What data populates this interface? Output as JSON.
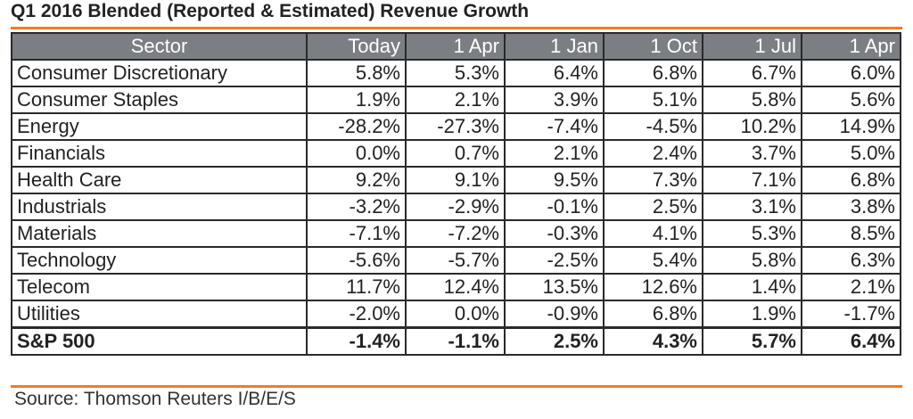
{
  "title": "Q1 2016 Blended (Reported & Estimated) Revenue Growth",
  "source": "Source: Thomson Reuters I/B/E/S",
  "colors": {
    "accent_rule": "#f07d28",
    "header_bg": "#7b7f83",
    "border": "#2a2a2a"
  },
  "chart_data": {
    "type": "table",
    "columns": [
      "Sector",
      "Today",
      "1 Apr",
      "1 Jan",
      "1 Oct",
      "1 Jul",
      "1 Apr"
    ],
    "rows": [
      [
        "Consumer Discretionary",
        "5.8%",
        "5.3%",
        "6.4%",
        "6.8%",
        "6.7%",
        "6.0%"
      ],
      [
        "Consumer Staples",
        "1.9%",
        "2.1%",
        "3.9%",
        "5.1%",
        "5.8%",
        "5.6%"
      ],
      [
        "Energy",
        "-28.2%",
        "-27.3%",
        "-7.4%",
        "-4.5%",
        "10.2%",
        "14.9%"
      ],
      [
        "Financials",
        "0.0%",
        "0.7%",
        "2.1%",
        "2.4%",
        "3.7%",
        "5.0%"
      ],
      [
        "Health Care",
        "9.2%",
        "9.1%",
        "9.5%",
        "7.3%",
        "7.1%",
        "6.8%"
      ],
      [
        "Industrials",
        "-3.2%",
        "-2.9%",
        "-0.1%",
        "2.5%",
        "3.1%",
        "3.8%"
      ],
      [
        "Materials",
        "-7.1%",
        "-7.2%",
        "-0.3%",
        "4.1%",
        "5.3%",
        "8.5%"
      ],
      [
        "Technology",
        "-5.6%",
        "-5.7%",
        "-2.5%",
        "5.4%",
        "5.8%",
        "6.3%"
      ],
      [
        "Telecom",
        "11.7%",
        "12.4%",
        "13.5%",
        "12.6%",
        "1.4%",
        "2.1%"
      ],
      [
        "Utilities",
        "-2.0%",
        "0.0%",
        "-0.9%",
        "6.8%",
        "1.9%",
        "-1.7%"
      ]
    ],
    "total_row": [
      "S&P 500",
      "-1.4%",
      "-1.1%",
      "2.5%",
      "4.3%",
      "5.7%",
      "6.4%"
    ]
  }
}
